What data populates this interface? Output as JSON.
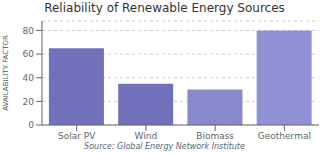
{
  "chart_data": {
    "type": "bar",
    "title": "Reliability of Renewable Energy Sources",
    "ylabel": "AVAILABILITY FACTOR",
    "categories": [
      "Solar PV",
      "Wind",
      "Biomass",
      "Geothermal"
    ],
    "values": [
      65,
      35,
      30,
      80
    ],
    "colors": [
      "#7070bb",
      "#7070bb",
      "#8888cc",
      "#9090d4"
    ],
    "ylim": [
      0,
      88
    ],
    "yticks": [
      0,
      20,
      40,
      60,
      80
    ],
    "grid": true,
    "annotations": [
      "Source: Global Energy Network Institute"
    ]
  }
}
